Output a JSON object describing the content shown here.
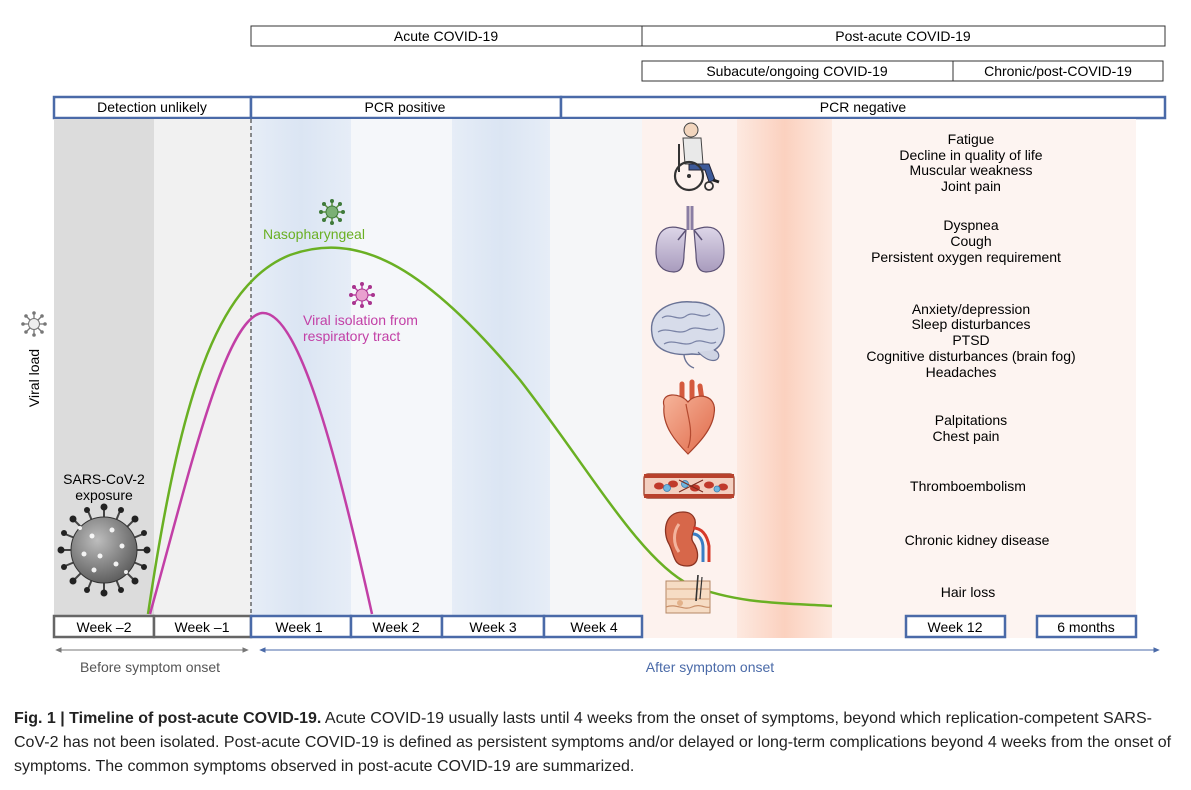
{
  "phases": {
    "acute": "Acute COVID-19",
    "post_acute": "Post-acute COVID-19",
    "subacute": "Subacute/ongoing COVID-19",
    "chronic": "Chronic/post-COVID-19"
  },
  "pcr": {
    "detection_unlikely": "Detection unlikely",
    "positive": "PCR positive",
    "negative": "PCR negative"
  },
  "curves": {
    "nasopharyngeal": "Nasopharyngeal",
    "viral_isolation_line1": "Viral isolation from",
    "viral_isolation_line2": "respiratory tract"
  },
  "y_axis_label": "Viral load",
  "exposure": {
    "line1": "SARS-CoV-2",
    "line2": "exposure"
  },
  "weeks": [
    "Week –2",
    "Week –1",
    "Week 1",
    "Week 2",
    "Week 3",
    "Week 4"
  ],
  "week12": "Week 12",
  "six_months": "6 months",
  "onset": {
    "before": "Before symptom onset",
    "after": "After symptom onset"
  },
  "symptom_groups": [
    {
      "organ": "wheelchair-icon",
      "lines": [
        "Fatigue",
        "Decline in quality of life",
        "Muscular weakness",
        "Joint pain"
      ]
    },
    {
      "organ": "lungs-icon",
      "lines": [
        "Dyspnea",
        "Cough",
        "Persistent oxygen requirement"
      ]
    },
    {
      "organ": "brain-icon",
      "lines": [
        "Anxiety/depression",
        "Sleep disturbances",
        "PTSD",
        "Cognitive disturbances (brain fog)",
        "Headaches"
      ]
    },
    {
      "organ": "heart-icon",
      "lines": [
        "Palpitations",
        "Chest pain"
      ]
    },
    {
      "organ": "blood-vessel-icon",
      "lines": [
        "Thromboembolism"
      ]
    },
    {
      "organ": "kidney-icon",
      "lines": [
        "Chronic kidney disease"
      ]
    },
    {
      "organ": "skin-hair-icon",
      "lines": [
        "Hair loss"
      ]
    }
  ],
  "caption": {
    "lead": "Fig. 1 | Timeline of post-acute COVID-19.",
    "text": " Acute COVID-19 usually lasts until 4 weeks from the onset of symptoms, beyond which replication-competent SARS-CoV-2 has not been isolated. Post-acute COVID-19 is defined as persistent symptoms and/or delayed or long-term complications beyond 4 weeks from the onset of symptoms. The common symptoms observed in post-acute COVID-19 are summarized."
  },
  "colors": {
    "green_curve": "#6ab023",
    "magenta_curve": "#c23fa6",
    "blue_box": "#4a6aa8",
    "light_blue_band": "#e3ebf6",
    "light_gray_band": "#dcdcdc",
    "pale_gray_band": "#f1f1f1",
    "salmon_band": "#fbd7c8",
    "pale_salmon_band": "#fdf2ee",
    "onset_after_text": "#4a6aa8"
  }
}
